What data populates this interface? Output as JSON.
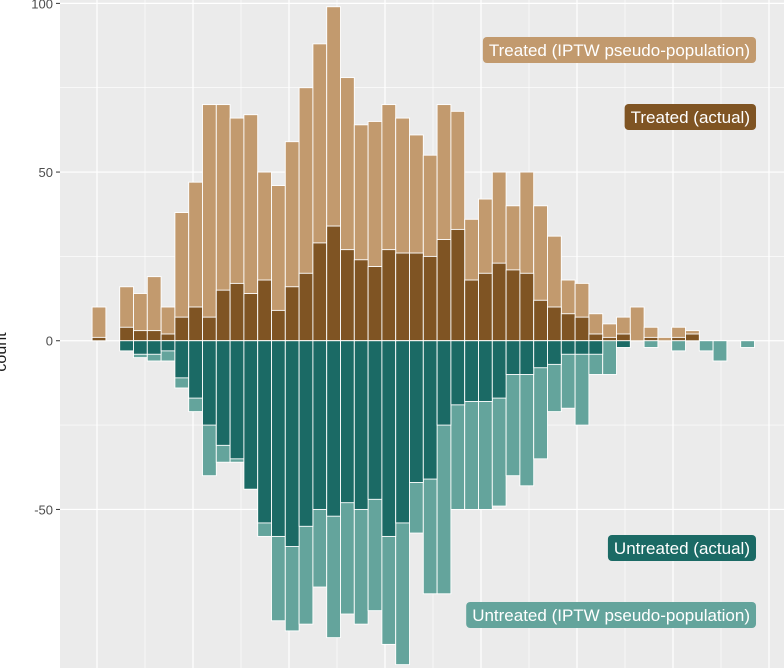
{
  "chart_data": {
    "type": "bar",
    "subtype": "mirrored-histogram",
    "ylabel": "count",
    "ylim": [
      -97,
      101
    ],
    "yticks": [
      -50,
      0,
      50,
      100
    ],
    "grid": true,
    "legend": "labels at right",
    "colors": {
      "treated_ipw": "#c29a6e",
      "treated_actual": "#7f5423",
      "untreated_actual": "#1b6a65",
      "untreated_ipw": "#64a49c",
      "panel_bg": "#ebebeb",
      "grid": "#ffffff"
    },
    "bin_centers": [
      1,
      2,
      3,
      4,
      5,
      6,
      7,
      8,
      9,
      10,
      11,
      12,
      13,
      14,
      15,
      16,
      17,
      18,
      19,
      20,
      21,
      22,
      23,
      24,
      25,
      26,
      27,
      28,
      29,
      30,
      31,
      32,
      33,
      34,
      35,
      36,
      37,
      38,
      39,
      40,
      41,
      42,
      43,
      44,
      45,
      46,
      47,
      48,
      49
    ],
    "series": [
      {
        "name": "Treated (IPTW pseudo-population)",
        "side": "above",
        "values": [
          10,
          0,
          16,
          14,
          19,
          10,
          38,
          47,
          70,
          70,
          66,
          67,
          50,
          46,
          59,
          75,
          88,
          99,
          78,
          64,
          65,
          70,
          66,
          61,
          55,
          70,
          68,
          36,
          42,
          50,
          40,
          50,
          40,
          31,
          18,
          17,
          8,
          5,
          7,
          10,
          4,
          1,
          4,
          3,
          0,
          0,
          0,
          0,
          0
        ]
      },
      {
        "name": "Treated (actual)",
        "side": "above",
        "values": [
          1,
          0,
          4,
          3,
          3,
          2,
          7,
          10,
          7,
          15,
          17,
          14,
          18,
          9,
          16,
          20,
          29,
          34,
          27,
          24,
          22,
          27,
          26,
          26,
          25,
          30,
          33,
          18,
          20,
          23,
          21,
          20,
          12,
          10,
          8,
          7,
          2,
          1,
          2,
          0,
          1,
          0,
          1,
          2,
          0,
          0,
          0,
          0,
          0
        ]
      },
      {
        "name": "Untreated (actual)",
        "side": "below",
        "values": [
          0,
          0,
          3,
          4,
          4,
          3,
          11,
          17,
          25,
          31,
          35,
          44,
          54,
          58,
          61,
          55,
          50,
          52,
          48,
          50,
          47,
          58,
          54,
          42,
          41,
          25,
          19,
          18,
          18,
          17,
          10,
          10,
          8,
          7,
          4,
          4,
          4,
          0,
          2,
          0,
          0,
          0,
          0,
          0,
          0,
          0,
          0,
          0,
          0
        ]
      },
      {
        "name": "Untreated (IPTW pseudo-population)",
        "side": "below",
        "values": [
          0,
          0,
          0,
          5,
          6,
          6,
          14,
          21,
          40,
          36,
          36,
          44,
          58,
          83,
          86,
          84,
          73,
          88,
          81,
          84,
          80,
          90,
          96,
          57,
          75,
          75,
          50,
          50,
          50,
          49,
          40,
          43,
          35,
          21,
          20,
          25,
          10,
          10,
          0,
          0,
          2,
          0,
          3,
          0,
          3,
          6,
          0,
          2,
          0
        ]
      }
    ]
  }
}
